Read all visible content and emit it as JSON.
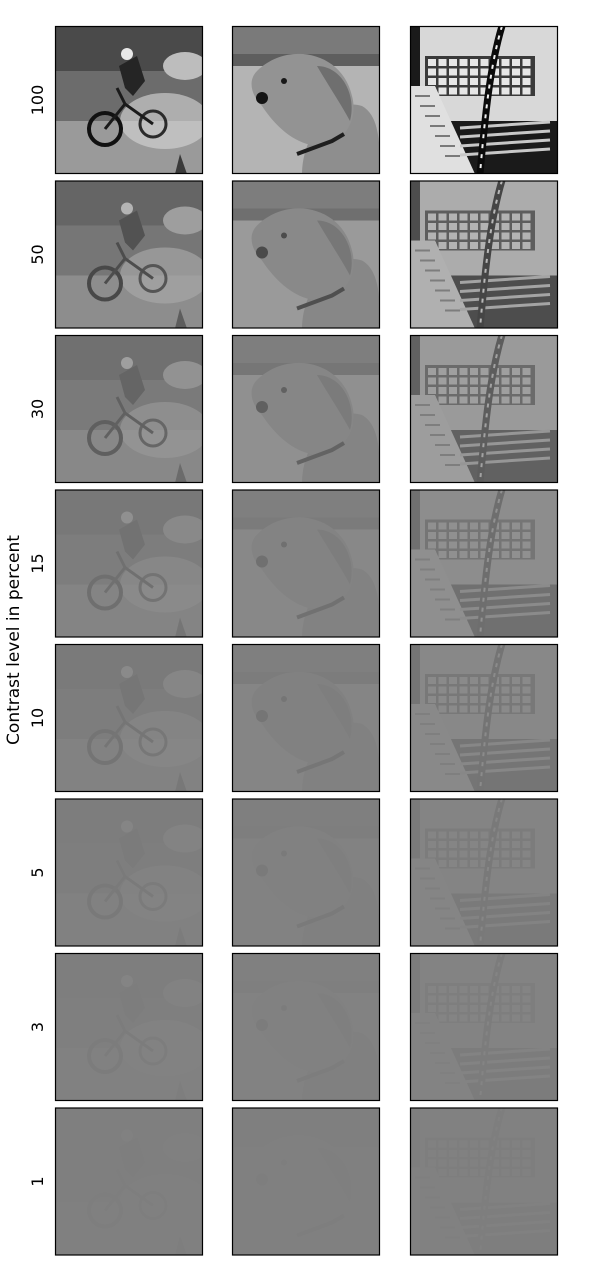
{
  "chart_data": {
    "type": "image_grid",
    "ylabel": "Contrast level in percent",
    "rows": [
      {
        "label": "100",
        "contrast": 100
      },
      {
        "label": "50",
        "contrast": 50
      },
      {
        "label": "30",
        "contrast": 30
      },
      {
        "label": "15",
        "contrast": 15
      },
      {
        "label": "10",
        "contrast": 10
      },
      {
        "label": "5",
        "contrast": 5
      },
      {
        "label": "3",
        "contrast": 3
      },
      {
        "label": "1",
        "contrast": 1
      }
    ],
    "columns": [
      {
        "subject": "bicycle-rider"
      },
      {
        "subject": "dog"
      },
      {
        "subject": "typewriter-feather"
      }
    ],
    "background_gray": "#808080",
    "frame_color": "#000000"
  }
}
